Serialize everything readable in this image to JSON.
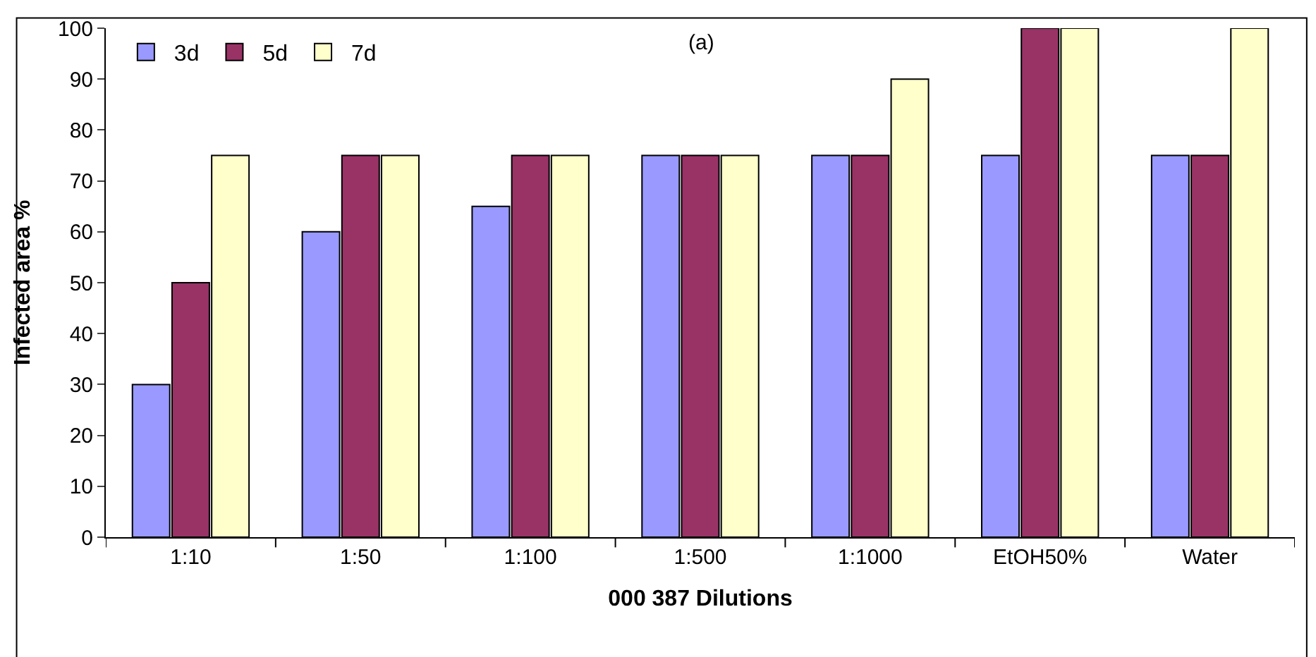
{
  "chart_data": {
    "type": "bar",
    "title": "(a)",
    "xlabel": "000 387 Dilutions",
    "ylabel": "Infected area %",
    "categories": [
      "1:10",
      "1:50",
      "1:100",
      "1:500",
      "1:1000",
      "EtOH50%",
      "Water"
    ],
    "series": [
      {
        "name": "3d",
        "color": "#9999ff",
        "values": [
          30,
          60,
          65,
          75,
          75,
          75,
          75
        ]
      },
      {
        "name": "5d",
        "color": "#993366",
        "values": [
          50,
          75,
          75,
          75,
          75,
          100,
          75
        ]
      },
      {
        "name": "7d",
        "color": "#ffffcc",
        "values": [
          75,
          75,
          75,
          75,
          90,
          100,
          100
        ]
      }
    ],
    "ylim": [
      0,
      100
    ],
    "yticks": [
      0,
      10,
      20,
      30,
      40,
      50,
      60,
      70,
      80,
      90,
      100
    ],
    "grid": false,
    "legend": "top left"
  }
}
